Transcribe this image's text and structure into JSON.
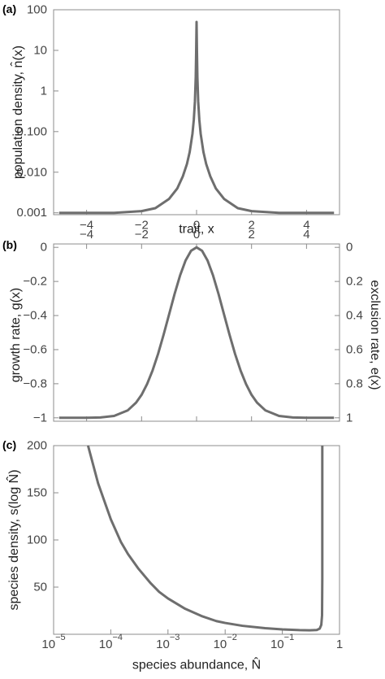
{
  "chart_data": [
    {
      "panel_label": "(a)",
      "type": "line",
      "xlabel": "trait, x",
      "ylabel": "population density, n̂(x)",
      "xlim": [
        -5.2,
        5.2
      ],
      "ylim": [
        0.0009,
        100
      ],
      "ylog": true,
      "x_ticks": [
        -4,
        -2,
        0,
        2,
        4
      ],
      "x_tick_labels": [
        "−4",
        "−2",
        "0",
        "2",
        "4"
      ],
      "y_ticks": [
        0.001,
        0.01,
        0.1,
        1,
        10,
        100
      ],
      "y_tick_labels": [
        "0.001",
        "0.010",
        "0.100",
        "1",
        "10",
        "100"
      ],
      "series": [
        {
          "x": [
            -5,
            -4,
            -3,
            -2,
            -1.5,
            -1,
            -0.7,
            -0.5,
            -0.35,
            -0.25,
            -0.15,
            -0.1,
            -0.06,
            -0.03,
            -0.015,
            0,
            0.015,
            0.03,
            0.06,
            0.1,
            0.15,
            0.25,
            0.35,
            0.5,
            0.7,
            1,
            1.5,
            2,
            3,
            4,
            5
          ],
          "y": [
            0.001,
            0.001,
            0.001,
            0.0011,
            0.0013,
            0.0022,
            0.004,
            0.0079,
            0.0159,
            0.0314,
            0.0876,
            0.197,
            0.547,
            2.19,
            8.75,
            50,
            8.75,
            2.19,
            0.547,
            0.197,
            0.0876,
            0.0314,
            0.0159,
            0.0079,
            0.004,
            0.0022,
            0.0013,
            0.0011,
            0.001,
            0.001,
            0.001
          ]
        }
      ]
    },
    {
      "panel_label": "(b)",
      "type": "line",
      "xlabel": "",
      "ylabel": "growth rate, g(x)",
      "ylabel_right": "exclusion rate, e(x)",
      "xlim": [
        -5.2,
        5.2
      ],
      "ylim": [
        -1.02,
        0.02
      ],
      "x_ticks": [
        -4,
        -2,
        0,
        2,
        4
      ],
      "x_tick_labels": [
        "−4",
        "−2",
        "0",
        "2",
        "4"
      ],
      "y_ticks": [
        0,
        -0.2,
        -0.4,
        -0.6,
        -0.8,
        -1
      ],
      "y_tick_labels": [
        "0",
        "−0.2",
        "−0.4",
        "−0.6",
        "−0.8",
        "−1"
      ],
      "y_right_tick_labels": [
        "0",
        "0.2",
        "0.4",
        "0.6",
        "0.8",
        "1"
      ],
      "series": [
        {
          "x": [
            -5,
            -4,
            -3.5,
            -3,
            -2.5,
            -2.2,
            -2,
            -1.8,
            -1.6,
            -1.4,
            -1.2,
            -1,
            -0.8,
            -0.6,
            -0.4,
            -0.2,
            0,
            0.2,
            0.4,
            0.6,
            0.8,
            1,
            1.2,
            1.4,
            1.6,
            1.8,
            2,
            2.2,
            2.5,
            3,
            3.5,
            4,
            5
          ],
          "y": [
            -1,
            -1,
            -0.998,
            -0.989,
            -0.956,
            -0.911,
            -0.865,
            -0.802,
            -0.722,
            -0.625,
            -0.513,
            -0.394,
            -0.274,
            -0.165,
            -0.077,
            -0.02,
            0,
            -0.02,
            -0.077,
            -0.165,
            -0.274,
            -0.394,
            -0.513,
            -0.625,
            -0.722,
            -0.802,
            -0.865,
            -0.911,
            -0.956,
            -0.989,
            -0.998,
            -1,
            -1
          ]
        }
      ]
    },
    {
      "panel_label": "(c)",
      "type": "line",
      "xlabel": "species abundance, N̂",
      "ylabel": "species density, s(log N̂)",
      "xlim": [
        1e-05,
        1
      ],
      "xlog": true,
      "ylim": [
        0,
        200
      ],
      "x_ticks": [
        1e-05,
        0.0001,
        0.001,
        0.01,
        0.1,
        1
      ],
      "x_tick_labels": [
        {
          "base": "10",
          "exp": "−5"
        },
        {
          "base": "10",
          "exp": "−4"
        },
        {
          "base": "10",
          "exp": "−3"
        },
        {
          "base": "10",
          "exp": "−2"
        },
        {
          "base": "10",
          "exp": "−1"
        },
        {
          "base": "1",
          "exp": ""
        }
      ],
      "y_ticks": [
        50,
        100,
        150,
        200
      ],
      "y_tick_labels": [
        "50",
        "100",
        "150",
        "200"
      ],
      "series": [
        {
          "x": [
            4e-05,
            6e-05,
            0.0001,
            0.00015,
            0.0002,
            0.0003,
            0.0005,
            0.0007,
            0.001,
            0.002,
            0.004,
            0.007,
            0.01,
            0.02,
            0.05,
            0.1,
            0.2,
            0.3,
            0.4,
            0.45,
            0.48,
            0.495,
            0.5,
            0.5,
            0.5
          ],
          "y": [
            200,
            160,
            122,
            98,
            85,
            70,
            54,
            45,
            38,
            27,
            19,
            14,
            12,
            9,
            6.5,
            5.2,
            4.4,
            4.2,
            4.5,
            6,
            10,
            20,
            60,
            150,
            200
          ]
        }
      ]
    }
  ]
}
